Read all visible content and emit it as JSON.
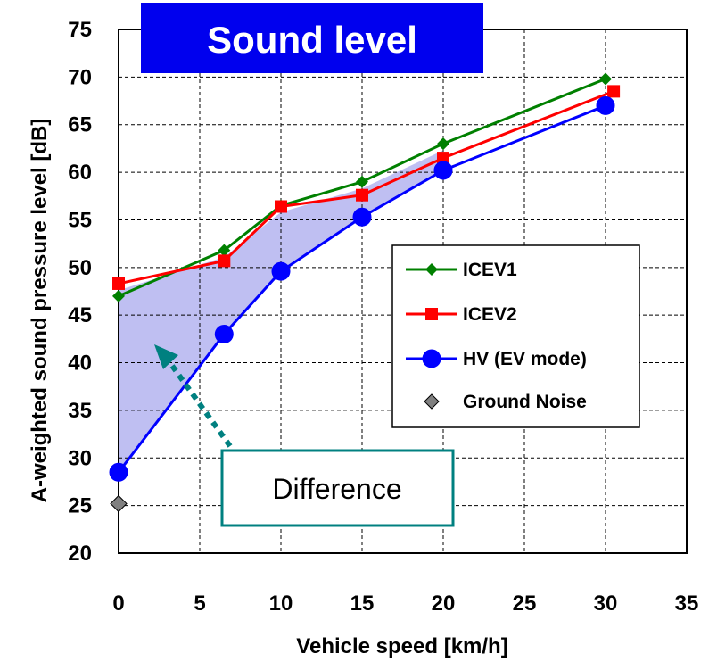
{
  "chart_data": {
    "type": "line",
    "title": "Sound level",
    "xlabel": "Vehicle speed [km/h]",
    "ylabel": "A-weighted sound pressure level [dB]",
    "xlim": [
      0,
      35
    ],
    "ylim": [
      20,
      75
    ],
    "x_ticks": [
      0,
      5,
      10,
      15,
      20,
      25,
      30,
      35
    ],
    "y_ticks": [
      20,
      25,
      30,
      35,
      40,
      45,
      50,
      55,
      60,
      65,
      70,
      75
    ],
    "grid": true,
    "legend_position": "right",
    "series": [
      {
        "name": "ICEV1",
        "color": "#008000",
        "marker": "diamond",
        "x": [
          0,
          6.5,
          10,
          15,
          20,
          30
        ],
        "y": [
          47.0,
          51.8,
          56.5,
          59.0,
          63.0,
          69.8
        ]
      },
      {
        "name": "ICEV2",
        "color": "#ff0000",
        "marker": "square",
        "x": [
          0,
          6.5,
          10,
          15,
          20,
          30.5
        ],
        "y": [
          48.3,
          50.7,
          56.4,
          57.6,
          61.5,
          68.5
        ]
      },
      {
        "name": "HV (EV mode)",
        "color": "#0000ff",
        "marker": "circle",
        "x": [
          0,
          6.5,
          10,
          15,
          20,
          30
        ],
        "y": [
          28.5,
          43.0,
          49.6,
          55.3,
          60.2,
          67.0
        ]
      },
      {
        "name": "Ground Noise",
        "color": "#808080",
        "marker": "diamond",
        "line": false,
        "x": [
          0
        ],
        "y": [
          25.2
        ]
      }
    ],
    "annotation": {
      "text": "Difference",
      "color": "#008080",
      "shading_color": "#b4b4f0"
    }
  }
}
